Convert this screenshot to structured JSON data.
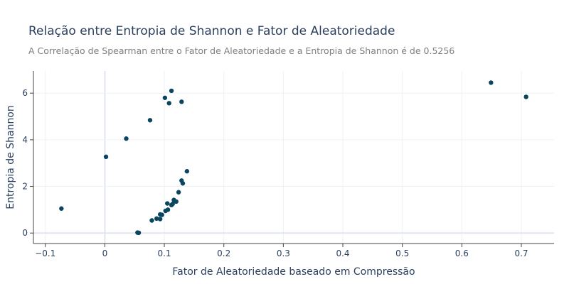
{
  "chart_data": {
    "type": "scatter",
    "title": "Relação entre Entropia de Shannon e Fator de Aleatoriedade",
    "subtitle": "A Correlação de Spearman entre o Fator de Aleatoriedade e a Entropia de Shannon é de 0.5256",
    "xlabel": "Fator de Aleatoriedade baseado em Compressão",
    "ylabel": "Entropia de Shannon",
    "xlim": [
      -0.12,
      0.755
    ],
    "ylim": [
      -0.45,
      6.95
    ],
    "xticks": [
      -0.1,
      0,
      0.1,
      0.2,
      0.3,
      0.4,
      0.5,
      0.6,
      0.7
    ],
    "xtick_labels": [
      "−0.1",
      "0",
      "0.1",
      "0.2",
      "0.3",
      "0.4",
      "0.5",
      "0.6",
      "0.7"
    ],
    "yticks": [
      0,
      2,
      4,
      6
    ],
    "ytick_labels": [
      "0",
      "2",
      "4",
      "6"
    ],
    "grid": true,
    "marker_color": "#0a4560",
    "points": [
      {
        "x": -0.073,
        "y": 1.05
      },
      {
        "x": 0.002,
        "y": 3.27
      },
      {
        "x": 0.036,
        "y": 4.05
      },
      {
        "x": 0.076,
        "y": 4.84
      },
      {
        "x": 0.101,
        "y": 5.8
      },
      {
        "x": 0.108,
        "y": 5.57
      },
      {
        "x": 0.112,
        "y": 6.1
      },
      {
        "x": 0.129,
        "y": 5.63
      },
      {
        "x": 0.649,
        "y": 6.45
      },
      {
        "x": 0.708,
        "y": 5.84
      },
      {
        "x": 0.055,
        "y": 0.02
      },
      {
        "x": 0.057,
        "y": 0.01
      },
      {
        "x": 0.079,
        "y": 0.54
      },
      {
        "x": 0.087,
        "y": 0.62
      },
      {
        "x": 0.093,
        "y": 0.6
      },
      {
        "x": 0.093,
        "y": 0.8
      },
      {
        "x": 0.096,
        "y": 0.78
      },
      {
        "x": 0.102,
        "y": 0.95
      },
      {
        "x": 0.105,
        "y": 1.27
      },
      {
        "x": 0.106,
        "y": 1.0
      },
      {
        "x": 0.112,
        "y": 1.2
      },
      {
        "x": 0.114,
        "y": 1.25
      },
      {
        "x": 0.116,
        "y": 1.42
      },
      {
        "x": 0.12,
        "y": 1.35
      },
      {
        "x": 0.124,
        "y": 1.75
      },
      {
        "x": 0.129,
        "y": 2.25
      },
      {
        "x": 0.131,
        "y": 2.13
      },
      {
        "x": 0.138,
        "y": 2.65
      }
    ]
  }
}
